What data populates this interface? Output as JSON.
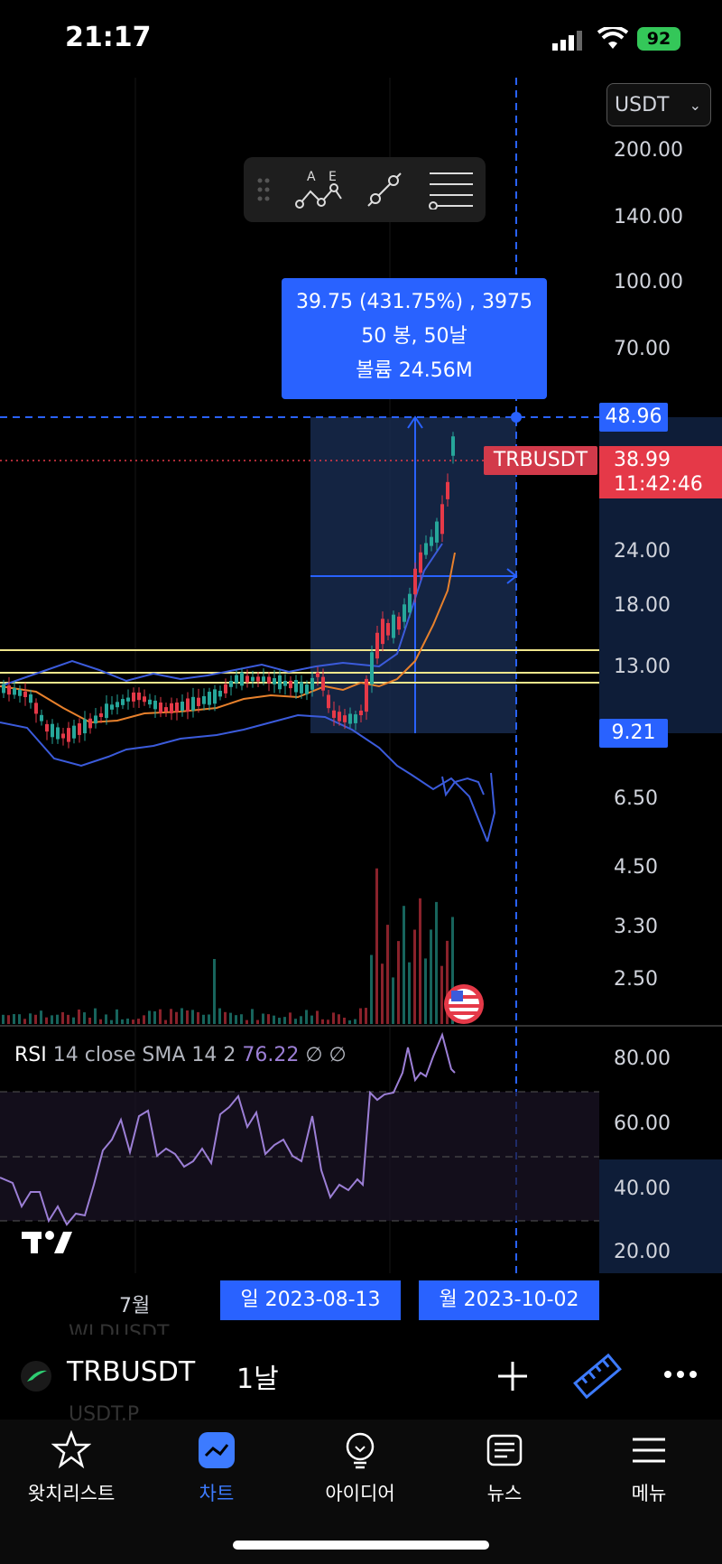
{
  "status": {
    "time": "21:17",
    "battery": "92"
  },
  "currency_select": {
    "value": "USDT"
  },
  "price_scale": {
    "labels": [
      "200.00",
      "140.00",
      "100.00",
      "70.00",
      "24.00",
      "18.00",
      "13.00",
      "6.50",
      "4.50",
      "3.30",
      "2.50"
    ],
    "measure_top": "48.96",
    "measure_bottom": "9.21"
  },
  "measure": {
    "line1": "39.75 (431.75%) , 3975",
    "line2": "50 봉, 50날",
    "line3": "볼륨 24.56M"
  },
  "last_price": {
    "symbol": "TRBUSDT",
    "price": "38.99",
    "countdown": "11:42:46"
  },
  "rsi": {
    "name": "RSI",
    "params": "14 close SMA 14 2",
    "value": "76.22",
    "extra1": "∅",
    "extra2": "∅",
    "scale": [
      "80.00",
      "60.00",
      "40.00",
      "20.00"
    ]
  },
  "time_axis": {
    "month": "7월",
    "start_date": "일 2023-08-13",
    "end_date": "월 2023-10-02"
  },
  "toolbar": {
    "symbol": "TRBUSDT",
    "interval": "1날"
  },
  "ghost_text": {
    "top": "WLDUSDT",
    "bottom": "USDT.P"
  },
  "tabs": [
    {
      "label": "왓치리스트",
      "icon": "star-icon"
    },
    {
      "label": "차트",
      "icon": "chart-icon"
    },
    {
      "label": "아이디어",
      "icon": "lightbulb-icon"
    },
    {
      "label": "뉴스",
      "icon": "news-icon"
    },
    {
      "label": "메뉴",
      "icon": "menu-icon"
    }
  ],
  "colors": {
    "accent": "#2962ff",
    "down": "#e53948",
    "up": "#26a69a",
    "rsi": "#9c7fd6",
    "active_tab": "#3d7bff"
  }
}
